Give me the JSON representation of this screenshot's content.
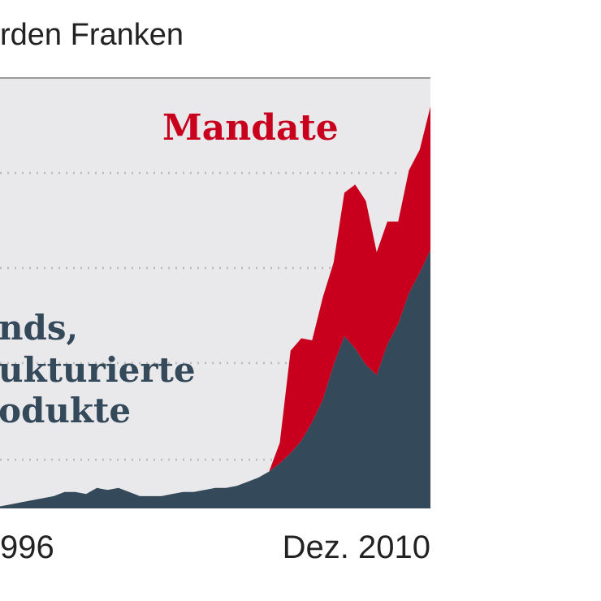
{
  "chart_data": {
    "type": "area",
    "subtitle": "rden Franken",
    "x_ticks": [
      "996",
      "Dez. 2010"
    ],
    "stacked": true,
    "grid": "dotted horizontal",
    "colors": {
      "background": "#e9e8ea",
      "grid": "#b9b9bd",
      "mandate": "#c8001e",
      "funds": "#34495a",
      "axis": "#9a9a9a"
    },
    "series": [
      {
        "name": "Mandate",
        "label_lines": [
          "Mandate"
        ],
        "color": "#c8001e",
        "values": [
          0,
          0,
          0,
          0,
          0,
          0,
          0,
          0,
          0,
          0,
          0,
          0,
          0,
          0,
          0,
          0,
          0,
          0,
          0,
          0,
          0,
          0,
          0,
          0,
          0,
          0,
          1,
          5,
          5,
          4,
          5,
          5,
          7,
          8,
          8,
          6,
          6,
          5,
          6,
          6,
          7
        ]
      },
      {
        "name": "Funds, strukturierte Produkte",
        "label_lines": [
          "nds,",
          "ukturierte",
          "odukte"
        ],
        "color": "#34495a",
        "values": [
          0.1,
          0.2,
          0.3,
          0.4,
          0.5,
          0.6,
          0.8,
          0.8,
          0.7,
          1.0,
          0.9,
          1.0,
          0.8,
          0.6,
          0.6,
          0.6,
          0.7,
          0.8,
          0.8,
          0.9,
          1.0,
          1.0,
          1.1,
          1.3,
          1.5,
          1.8,
          2.2,
          2.7,
          3.3,
          4.2,
          5.3,
          7.0,
          8.4,
          7.8,
          7.0,
          6.5,
          8.0,
          9.0,
          10.5,
          11.5,
          12.6
        ]
      }
    ]
  }
}
